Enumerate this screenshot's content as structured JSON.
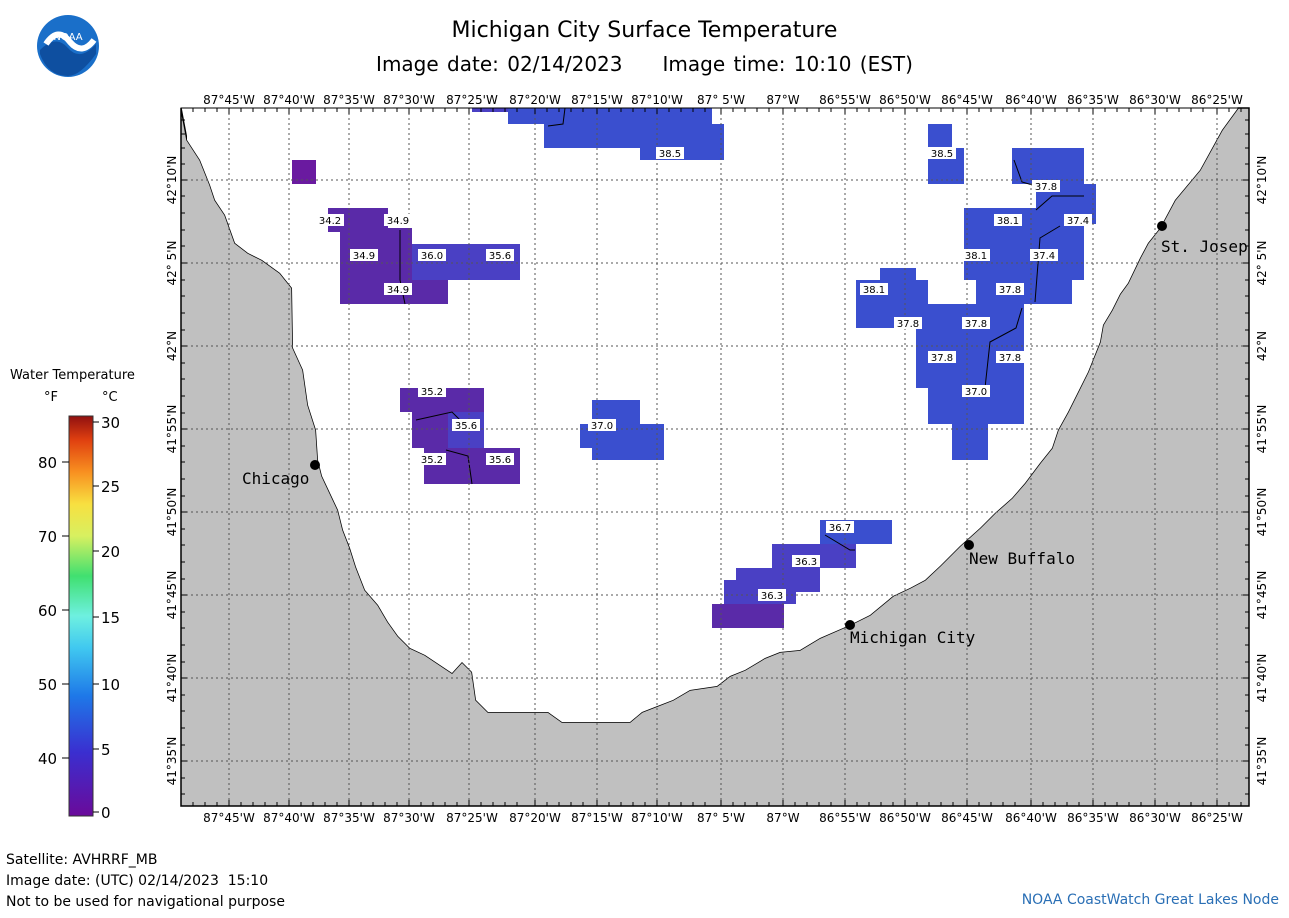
{
  "header": {
    "title": "Michigan City Surface Temperature",
    "image_date": "Image date: 02/14/2023",
    "image_time": "Image time: 10:10 (EST)",
    "logo_text": "NOAA"
  },
  "longitudes": [
    "87°45'W",
    "87°40'W",
    "87°35'W",
    "87°30'W",
    "87°25'W",
    "87°20'W",
    "87°15'W",
    "87°10'W",
    "87° 5'W",
    "87°W",
    "86°55'W",
    "86°50'W",
    "86°45'W",
    "86°40'W",
    "86°35'W",
    "86°30'W",
    "86°25'W"
  ],
  "latitudes": [
    "42°10'N",
    "42° 5'N",
    "42°N",
    "41°55'N",
    "41°50'N",
    "41°45'N",
    "41°40'N",
    "41°35'N"
  ],
  "cities": [
    {
      "name": "Chicago",
      "dot_color": "#000000"
    },
    {
      "name": "Michigan City",
      "dot_color": "#000000"
    },
    {
      "name": "New Buffalo",
      "dot_color": "#000000"
    },
    {
      "name": "St. Josep",
      "dot_color": "#000000"
    }
  ],
  "temperature_labels": [
    "38.5",
    "38.5",
    "37.8",
    "38.1",
    "37.4",
    "38.1",
    "37.4",
    "34.2",
    "34.9",
    "34.9",
    "36.0",
    "35.6",
    "34.9",
    "38.1",
    "37.8",
    "37.8",
    "37.8",
    "37.8",
    "37.8",
    "35.2",
    "35.6",
    "37.0",
    "35.2",
    "35.6",
    "37.0",
    "36.7",
    "36.3",
    "36.3"
  ],
  "legend": {
    "title": "Water Temperature",
    "unit_f": "°F",
    "unit_c": "°C",
    "f_ticks": [
      "80",
      "70",
      "60",
      "50",
      "40"
    ],
    "c_ticks": [
      "30",
      "25",
      "20",
      "15",
      "10",
      "5",
      "0"
    ]
  },
  "footer": {
    "satellite": "Satellite: AVHRRF_MB",
    "utc_date": "Image date: (UTC) 02/14/2023  15:10",
    "disclaimer": "Not to be used for navigational purpose",
    "credit": "NOAA CoastWatch Great Lakes Node"
  },
  "colors": {
    "land": "#c0c0c0",
    "water": "#ffffff",
    "cell_blue": "#3a4fcf",
    "cell_indigo": "#4a40c4",
    "cell_purple": "#5a2aa8",
    "cell_violet": "#6a1aa0",
    "credit": "#2a6fb5"
  }
}
